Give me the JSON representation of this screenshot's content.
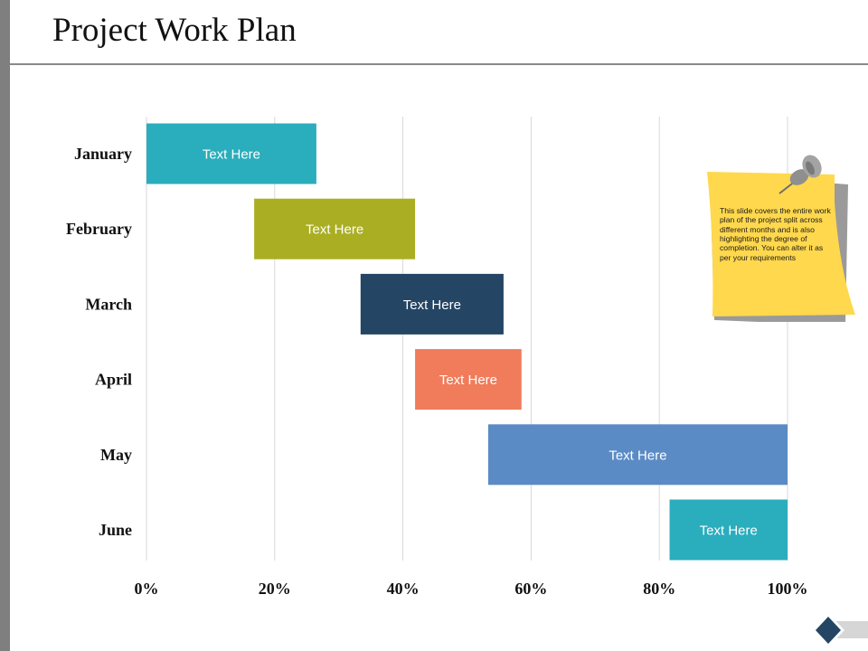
{
  "page": {
    "title": "Project Work Plan"
  },
  "note": {
    "text": "This slide covers the entire work plan of the project split across different months and is also highlighting the degree of completion. You can alter it as per your requirements",
    "color": "#FFD84D"
  },
  "colors": {
    "teal": "#2AADBC",
    "olive": "#AAAE22",
    "navy": "#244563",
    "coral": "#F07C5B",
    "steel_blue": "#5B8BC5",
    "sidebar_gray": "#7F7F7F",
    "diamond": "#244563"
  },
  "icons": [
    "pushpin-icon",
    "diamond-arrow-icon"
  ],
  "chart_data": {
    "type": "bar",
    "orientation": "horizontal",
    "style": "gantt",
    "categories": [
      "January",
      "February",
      "March",
      "April",
      "May",
      "June"
    ],
    "series": [
      {
        "values": [
          {
            "start": 0,
            "end": 26.5,
            "label": "Text Here",
            "color": "#2AADBC"
          },
          {
            "start": 16.8,
            "end": 41.9,
            "label": "Text Here",
            "color": "#AAAE22"
          },
          {
            "start": 33.4,
            "end": 55.7,
            "label": "Text Here",
            "color": "#244563"
          },
          {
            "start": 41.9,
            "end": 58.5,
            "label": "Text Here",
            "color": "#F07C5B"
          },
          {
            "start": 53.3,
            "end": 100,
            "label": "Text Here",
            "color": "#5B8BC5"
          },
          {
            "start": 81.6,
            "end": 100,
            "label": "Text Here",
            "color": "#2AADBC"
          }
        ]
      }
    ],
    "x_ticks": [
      "0%",
      "20%",
      "40%",
      "60%",
      "80%",
      "100%"
    ],
    "x_tick_values": [
      0,
      20,
      40,
      60,
      80,
      100
    ],
    "xlim": [
      0,
      100
    ],
    "xlabel": "",
    "ylabel": "",
    "grid": "vertical",
    "legend": "none"
  }
}
